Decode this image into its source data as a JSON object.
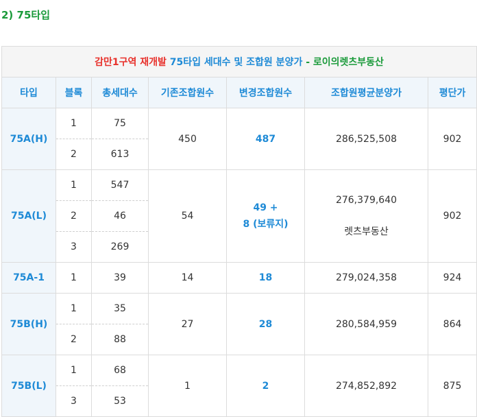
{
  "heading": "2) 75타입",
  "caption": {
    "part_red": "감만1구역 재개발",
    "part_blue": "75타입 세대수 및 조합원 분양가",
    "part_green": "- 로이의렛츠부동산"
  },
  "columns": [
    "타입",
    "블록",
    "총세대수",
    "기존조합원수",
    "변경조합원수",
    "조합원평균분양가",
    "평단가"
  ],
  "groups": [
    {
      "type": "75A(H)",
      "rows": [
        {
          "block": "1",
          "total": "75"
        },
        {
          "block": "2",
          "total": "613"
        }
      ],
      "existing": "450",
      "changed": "487",
      "avg_price": "286,525,508",
      "per_pyeong": "902"
    },
    {
      "type": "75A(L)",
      "rows": [
        {
          "block": "1",
          "total": "547"
        },
        {
          "block": "2",
          "total": "46"
        },
        {
          "block": "3",
          "total": "269"
        }
      ],
      "existing": "54",
      "changed_line1": "49 +",
      "changed_line2": "8 (보류지)",
      "avg_price": "276,379,640",
      "avg_note": "렛츠부동산",
      "per_pyeong": "902"
    },
    {
      "type": "75A-1",
      "rows": [
        {
          "block": "1",
          "total": "39"
        }
      ],
      "existing": "14",
      "changed": "18",
      "avg_price": "279,024,358",
      "per_pyeong": "924"
    },
    {
      "type": "75B(H)",
      "rows": [
        {
          "block": "1",
          "total": "35"
        },
        {
          "block": "2",
          "total": "88"
        }
      ],
      "existing": "27",
      "changed": "28",
      "avg_price": "280,584,959",
      "per_pyeong": "864"
    },
    {
      "type": "75B(L)",
      "rows": [
        {
          "block": "1",
          "total": "68"
        },
        {
          "block": "3",
          "total": "53"
        }
      ],
      "existing": "1",
      "changed": "2",
      "avg_price": "274,852,892",
      "per_pyeong": "875"
    }
  ]
}
